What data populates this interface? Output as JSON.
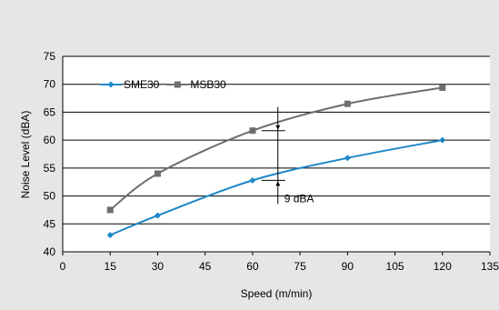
{
  "chart_data": {
    "type": "line",
    "xlabel": "Speed (m/min)",
    "ylabel": "Noise Level (dBA)",
    "xlim": [
      0,
      135
    ],
    "ylim": [
      40,
      75
    ],
    "xticks": [
      0,
      15,
      30,
      45,
      60,
      75,
      90,
      105,
      120,
      135
    ],
    "yticks": [
      40,
      45,
      50,
      55,
      60,
      65,
      70,
      75
    ],
    "grid": "horizontal",
    "legend_position": "top-left",
    "series": [
      {
        "name": "SME30",
        "color": "#1e87c8",
        "marker": "diamond",
        "x": [
          15,
          30,
          60,
          90,
          120
        ],
        "y": [
          43,
          46.5,
          52.8,
          56.8,
          60
        ]
      },
      {
        "name": "MSB30",
        "color": "#6e6e6e",
        "marker": "square",
        "x": [
          15,
          30,
          60,
          90,
          120
        ],
        "y": [
          47.5,
          54,
          61.7,
          66.5,
          69.4
        ]
      }
    ],
    "annotations": [
      {
        "text": "9 dBA",
        "x": 68,
        "y_low": 52.8,
        "y_high": 61.7
      }
    ]
  }
}
